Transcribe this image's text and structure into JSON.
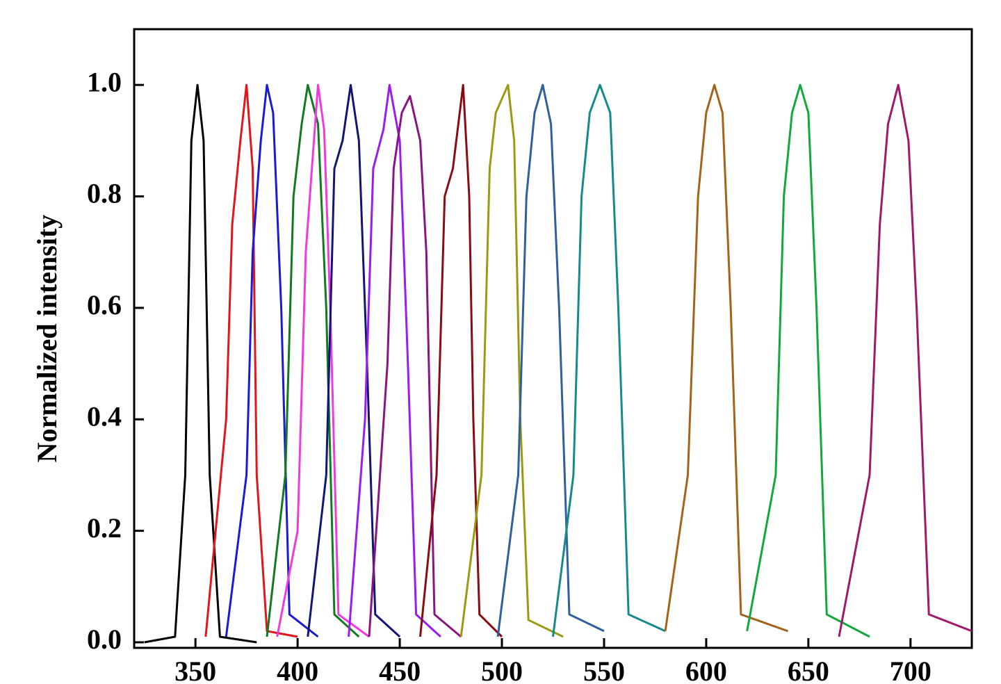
{
  "chart_data": {
    "type": "line",
    "y_label": "Normalized intensity",
    "xlim": [
      320,
      730
    ],
    "ylim": [
      -0.01,
      1.1
    ],
    "xticks": [
      350,
      400,
      450,
      500,
      550,
      600,
      650,
      700
    ],
    "yticks": [
      {
        "value": 0,
        "label": "0.0"
      },
      0.2,
      0.4,
      0.6,
      0.8,
      {
        "value": 1,
        "label": "1.0"
      }
    ],
    "series": [
      {
        "color": "#000000",
        "x": [
          325,
          340,
          345,
          348,
          351,
          354,
          357,
          362,
          380
        ],
        "values": [
          0,
          0.01,
          0.3,
          0.9,
          1.0,
          0.9,
          0.3,
          0.01,
          0
        ]
      },
      {
        "color": "#e0161b",
        "x": [
          355,
          365,
          368,
          372,
          375,
          378,
          380,
          385,
          400
        ],
        "values": [
          0.01,
          0.4,
          0.75,
          0.9,
          1.0,
          0.85,
          0.3,
          0.02,
          0.01
        ]
      },
      {
        "color": "#1a1ad6",
        "x": [
          365,
          375,
          378,
          382,
          385,
          388,
          392,
          396,
          410
        ],
        "values": [
          0.01,
          0.3,
          0.7,
          0.9,
          1.0,
          0.95,
          0.6,
          0.05,
          0.01
        ]
      },
      {
        "color": "#0f7a1e",
        "x": [
          385,
          394,
          398,
          402,
          405,
          410,
          414,
          418,
          430
        ],
        "values": [
          0.01,
          0.3,
          0.8,
          0.93,
          1.0,
          0.93,
          0.6,
          0.05,
          0.01
        ]
      },
      {
        "color": "#f03ae0",
        "x": [
          390,
          400,
          404,
          408,
          410,
          413,
          416,
          420,
          435
        ],
        "values": [
          0.01,
          0.2,
          0.7,
          0.9,
          1.0,
          0.92,
          0.6,
          0.05,
          0.01
        ]
      },
      {
        "color": "#141478",
        "x": [
          405,
          414,
          418,
          422,
          426,
          430,
          434,
          438,
          450
        ],
        "values": [
          0.01,
          0.3,
          0.85,
          0.9,
          1.0,
          0.9,
          0.5,
          0.05,
          0.01
        ]
      },
      {
        "color": "#9a1cf0",
        "x": [
          425,
          433,
          437,
          442,
          445,
          450,
          454,
          458,
          470
        ],
        "values": [
          0.01,
          0.4,
          0.85,
          0.92,
          1.0,
          0.9,
          0.5,
          0.05,
          0.01
        ]
      },
      {
        "color": "#8a1482",
        "x": [
          435,
          444,
          447,
          451,
          455,
          460,
          463,
          467,
          480
        ],
        "values": [
          0.01,
          0.5,
          0.85,
          0.95,
          0.98,
          0.9,
          0.7,
          0.05,
          0.01
        ]
      },
      {
        "color": "#8a0c12",
        "x": [
          460,
          468,
          472,
          476,
          481,
          484,
          486,
          489,
          500
        ],
        "values": [
          0.01,
          0.3,
          0.8,
          0.85,
          1.0,
          0.8,
          0.4,
          0.05,
          0.01
        ]
      },
      {
        "color": "#9a9a10",
        "x": [
          480,
          490,
          494,
          497,
          503,
          506,
          509,
          513,
          530
        ],
        "values": [
          0.01,
          0.3,
          0.85,
          0.95,
          1.0,
          0.9,
          0.4,
          0.04,
          0.01
        ]
      },
      {
        "color": "#2e5f9e",
        "x": [
          498,
          508,
          512,
          516,
          520,
          524,
          528,
          533,
          550
        ],
        "values": [
          0.01,
          0.3,
          0.8,
          0.95,
          1.0,
          0.93,
          0.6,
          0.05,
          0.02
        ]
      },
      {
        "color": "#148a8a",
        "x": [
          525,
          535,
          539,
          543,
          548,
          553,
          557,
          562,
          580
        ],
        "values": [
          0.01,
          0.3,
          0.8,
          0.95,
          1.0,
          0.95,
          0.6,
          0.05,
          0.02
        ]
      },
      {
        "color": "#a5621a",
        "x": [
          580,
          591,
          596,
          600,
          604,
          608,
          612,
          617,
          640
        ],
        "values": [
          0.02,
          0.3,
          0.8,
          0.95,
          1.0,
          0.95,
          0.6,
          0.05,
          0.02
        ]
      },
      {
        "color": "#12a83a",
        "x": [
          620,
          634,
          638,
          642,
          646,
          650,
          654,
          659,
          680
        ],
        "values": [
          0.02,
          0.3,
          0.8,
          0.95,
          1.0,
          0.95,
          0.6,
          0.05,
          0.01
        ]
      },
      {
        "color": "#a0186a",
        "x": [
          665,
          680,
          685,
          689,
          694,
          699,
          703,
          709,
          730
        ],
        "values": [
          0.01,
          0.3,
          0.75,
          0.93,
          1.0,
          0.9,
          0.6,
          0.05,
          0.02
        ]
      }
    ]
  }
}
